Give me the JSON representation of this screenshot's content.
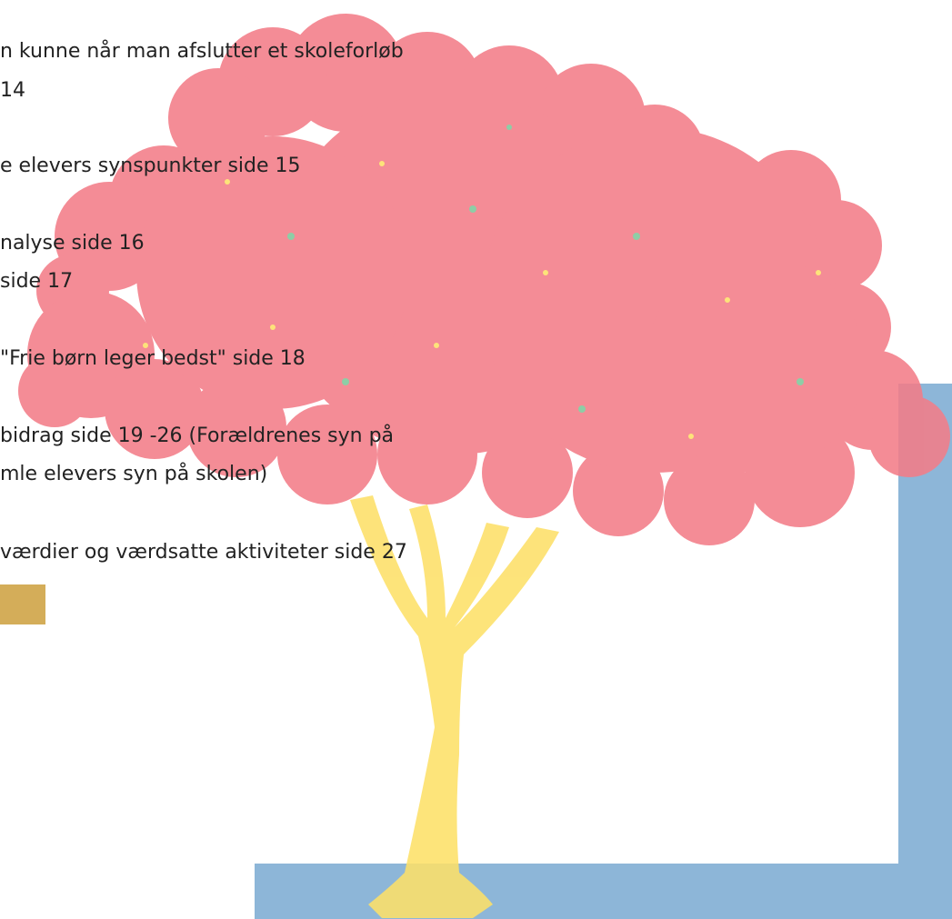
{
  "lines": [
    "n kunne når man afslutter et skoleforløb",
    "14",
    "e elevers synspunkter side 15",
    "nalyse side 16",
    "side 17",
    "\"Frie børn leger bedst\" side 18",
    "bidrag side 19 -26 (Forældrenes syn på",
    "mle elevers syn på skolen)",
    "værdier og værdsatte aktiviteter side 27"
  ]
}
